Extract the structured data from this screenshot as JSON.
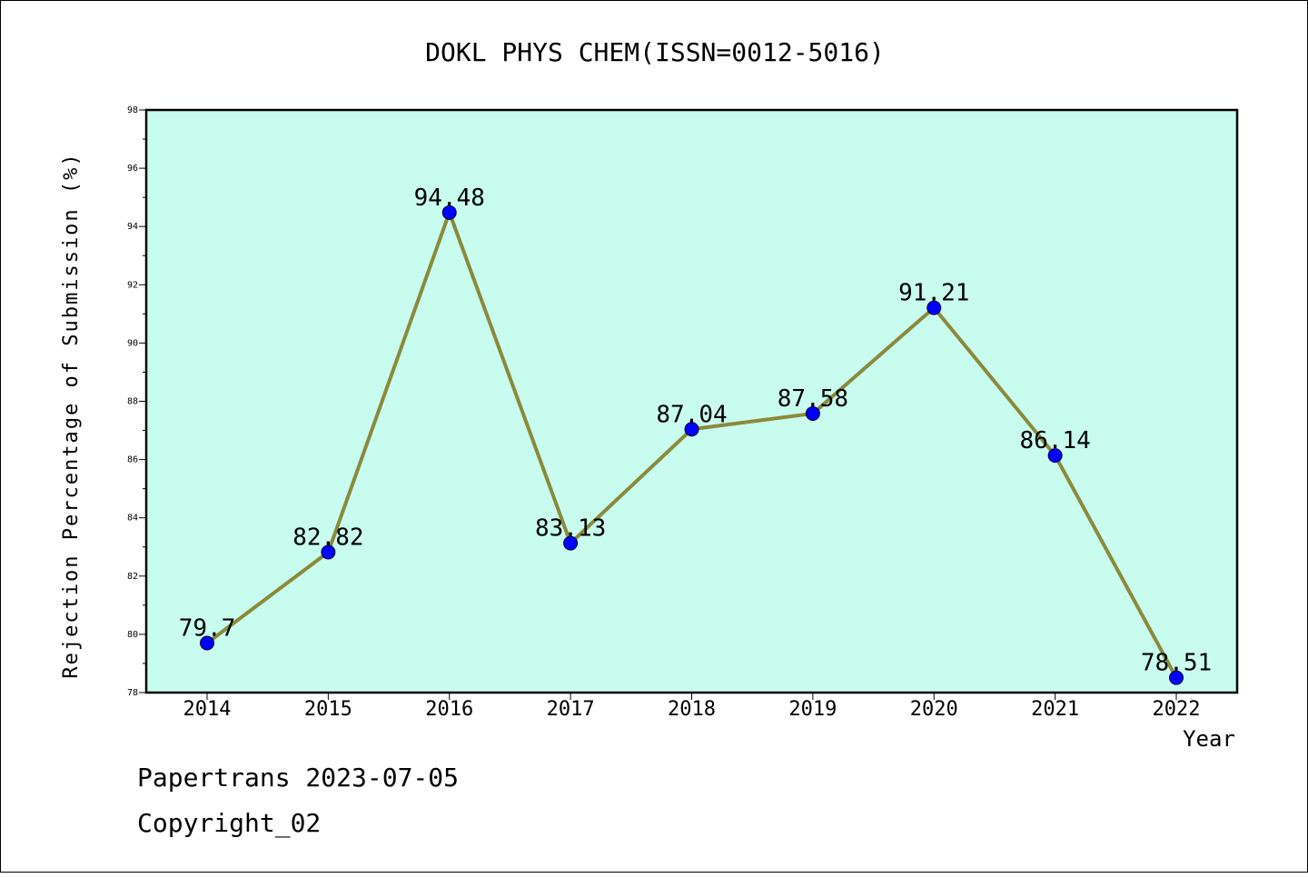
{
  "footer": {
    "line1": "Papertrans 2023-07-05",
    "line2": "Copyright_02"
  },
  "chart_data": {
    "type": "line",
    "title": "DOKL PHYS CHEM(ISSN=0012-5016)",
    "xlabel": "Year",
    "ylabel": "Rejection Percentage of Submission (%)",
    "categories": [
      "2014",
      "2015",
      "2016",
      "2017",
      "2018",
      "2019",
      "2020",
      "2021",
      "2022"
    ],
    "series": [
      {
        "values": [
          79.7,
          82.82,
          94.48,
          83.13,
          87.04,
          87.58,
          91.21,
          86.14,
          78.51
        ],
        "labels": [
          "79.7",
          "82.82",
          "94.48",
          "83.13",
          "87.04",
          "87.58",
          "91.21",
          "86.14",
          "78.51"
        ]
      }
    ],
    "ylim": [
      78,
      98
    ],
    "yticks": [
      78,
      80,
      82,
      84,
      86,
      88,
      90,
      92,
      94,
      96,
      98
    ],
    "grid": false,
    "colors": {
      "plot_background": "#c8fcee",
      "line": "#8b8a3a",
      "marker": "#0000ff"
    }
  }
}
